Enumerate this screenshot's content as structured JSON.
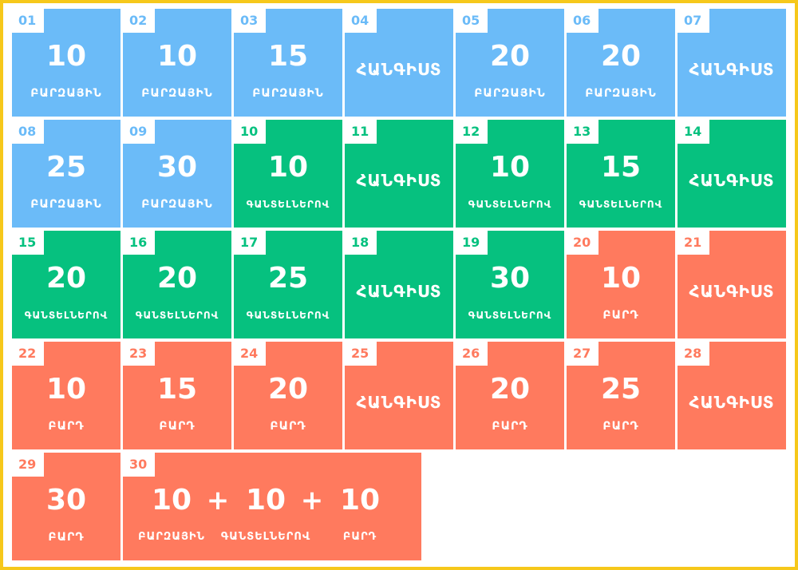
{
  "colors": {
    "beginner": "#6bbbf8",
    "intermediate": "#06c17f",
    "advanced": "#ff7a5e",
    "border": "#f6c81b"
  },
  "tiles": [
    {
      "day": "01",
      "level": "beginner",
      "reps": "10",
      "unit": "ԲԱՐԶԱՅԻՆ"
    },
    {
      "day": "02",
      "level": "beginner",
      "reps": "10",
      "unit": "ԲԱՐԶԱՅԻՆ"
    },
    {
      "day": "03",
      "level": "beginner",
      "reps": "15",
      "unit": "ԲԱՐԶԱՅԻՆ"
    },
    {
      "day": "04",
      "level": "beginner",
      "rest": "ՀԱՆԳԻՍՏ"
    },
    {
      "day": "05",
      "level": "beginner",
      "reps": "20",
      "unit": "ԲԱՐԶԱՅԻՆ"
    },
    {
      "day": "06",
      "level": "beginner",
      "reps": "20",
      "unit": "ԲԱՐԶԱՅԻՆ"
    },
    {
      "day": "07",
      "level": "beginner",
      "rest": "ՀԱՆԳԻՍՏ"
    },
    {
      "day": "08",
      "level": "beginner",
      "reps": "25",
      "unit": "ԲԱՐԶԱՅԻՆ"
    },
    {
      "day": "09",
      "level": "beginner",
      "reps": "30",
      "unit": "ԲԱՐԶԱՅԻՆ"
    },
    {
      "day": "10",
      "level": "intermediate",
      "reps": "10",
      "unit": "ԳԱՆՏԵԼՆԵՐՈՎ"
    },
    {
      "day": "11",
      "level": "intermediate",
      "rest": "ՀԱՆԳԻՍՏ"
    },
    {
      "day": "12",
      "level": "intermediate",
      "reps": "10",
      "unit": "ԳԱՆՏԵԼՆԵՐՈՎ"
    },
    {
      "day": "13",
      "level": "intermediate",
      "reps": "15",
      "unit": "ԳԱՆՏԵԼՆԵՐՈՎ"
    },
    {
      "day": "14",
      "level": "intermediate",
      "rest": "ՀԱՆԳԻՍՏ"
    },
    {
      "day": "15",
      "level": "intermediate",
      "reps": "20",
      "unit": "ԳԱՆՏԵԼՆԵՐՈՎ"
    },
    {
      "day": "16",
      "level": "intermediate",
      "reps": "20",
      "unit": "ԳԱՆՏԵԼՆԵՐՈՎ"
    },
    {
      "day": "17",
      "level": "intermediate",
      "reps": "25",
      "unit": "ԳԱՆՏԵԼՆԵՐՈՎ"
    },
    {
      "day": "18",
      "level": "intermediate",
      "rest": "ՀԱՆԳԻՍՏ"
    },
    {
      "day": "19",
      "level": "intermediate",
      "reps": "30",
      "unit": "ԳԱՆՏԵԼՆԵՐՈՎ"
    },
    {
      "day": "20",
      "level": "advanced",
      "reps": "10",
      "unit": "ԲԱՐԴ"
    },
    {
      "day": "21",
      "level": "advanced",
      "rest": "ՀԱՆԳԻՍՏ"
    },
    {
      "day": "22",
      "level": "advanced",
      "reps": "10",
      "unit": "ԲԱՐԴ"
    },
    {
      "day": "23",
      "level": "advanced",
      "reps": "15",
      "unit": "ԲԱՐԴ"
    },
    {
      "day": "24",
      "level": "advanced",
      "reps": "20",
      "unit": "ԲԱՐԴ"
    },
    {
      "day": "25",
      "level": "advanced",
      "rest": "ՀԱՆԳԻՍՏ"
    },
    {
      "day": "26",
      "level": "advanced",
      "reps": "20",
      "unit": "ԲԱՐԴ"
    },
    {
      "day": "27",
      "level": "advanced",
      "reps": "25",
      "unit": "ԲԱՐԴ"
    },
    {
      "day": "28",
      "level": "advanced",
      "rest": "ՀԱՆԳԻՍՏ"
    },
    {
      "day": "29",
      "level": "advanced",
      "reps": "30",
      "unit": "ԲԱՐԴ"
    }
  ],
  "final": {
    "day": "30",
    "level": "advanced",
    "parts": [
      {
        "reps": "10",
        "unit": "ԲԱՐԶԱՅԻՆ"
      },
      {
        "reps": "10",
        "unit": "ԳԱՆՏԵԼՆԵՐՈՎ"
      },
      {
        "reps": "10",
        "unit": "ԲԱՐԴ"
      }
    ],
    "plus": "+"
  }
}
